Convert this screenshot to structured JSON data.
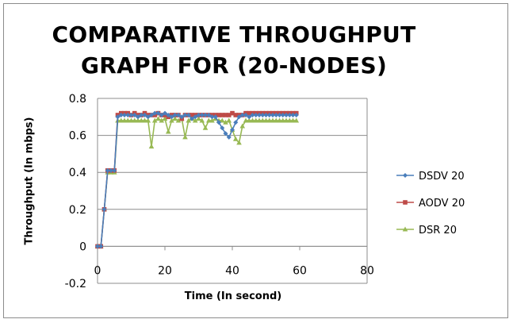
{
  "chart_data": {
    "type": "line",
    "title": "COMPARATIVE THROUGHPUT GRAPH FOR (20-NODES)",
    "title_lines": [
      "COMPARATIVE THROUGHPUT",
      "GRAPH FOR (20-NODES)"
    ],
    "xlabel": "Time (In second)",
    "ylabel": "Throughput (In mbps)",
    "xlim": [
      0,
      80
    ],
    "ylim": [
      -0.2,
      0.8
    ],
    "x_ticks": [
      0,
      20,
      40,
      60,
      80
    ],
    "y_ticks": [
      -0.2,
      0,
      0.2,
      0.4,
      0.6,
      0.8
    ],
    "x_tick_labels": [
      "0",
      "20",
      "40",
      "60",
      "80"
    ],
    "y_tick_labels": [
      "-0.2",
      "0",
      "0.2",
      "0.4",
      "0.6",
      "0.8"
    ],
    "grid": "horizontal",
    "legend_position": "right",
    "series": [
      {
        "name": "DSDV 20",
        "color": "#4a7ebb",
        "marker": "diamond",
        "x": [
          0,
          1,
          2,
          3,
          4,
          5,
          6,
          7,
          8,
          9,
          10,
          11,
          12,
          13,
          14,
          15,
          16,
          17,
          18,
          19,
          20,
          21,
          22,
          23,
          24,
          25,
          26,
          27,
          28,
          29,
          30,
          31,
          32,
          33,
          34,
          35,
          36,
          37,
          38,
          39,
          40,
          41,
          42,
          43,
          44,
          45,
          46,
          47,
          48,
          49,
          50,
          51,
          52,
          53,
          54,
          55,
          56,
          57,
          58,
          59
        ],
        "y": [
          0,
          0,
          0.2,
          0.41,
          0.41,
          0.41,
          0.7,
          0.71,
          0.71,
          0.71,
          0.71,
          0.71,
          0.7,
          0.71,
          0.71,
          0.7,
          0.71,
          0.72,
          0.72,
          0.71,
          0.72,
          0.71,
          0.7,
          0.71,
          0.71,
          0.7,
          0.71,
          0.71,
          0.69,
          0.7,
          0.71,
          0.71,
          0.71,
          0.71,
          0.7,
          0.7,
          0.67,
          0.64,
          0.61,
          0.59,
          0.63,
          0.67,
          0.7,
          0.71,
          0.71,
          0.7,
          0.71,
          0.71,
          0.71,
          0.71,
          0.71,
          0.71,
          0.71,
          0.71,
          0.71,
          0.71,
          0.71,
          0.71,
          0.71,
          0.71
        ]
      },
      {
        "name": "AODV 20",
        "color": "#be4b48",
        "marker": "square",
        "x": [
          0,
          1,
          2,
          3,
          4,
          5,
          6,
          7,
          8,
          9,
          10,
          11,
          12,
          13,
          14,
          15,
          16,
          17,
          18,
          19,
          20,
          21,
          22,
          23,
          24,
          25,
          26,
          27,
          28,
          29,
          30,
          31,
          32,
          33,
          34,
          35,
          36,
          37,
          38,
          39,
          40,
          41,
          42,
          43,
          44,
          45,
          46,
          47,
          48,
          49,
          50,
          51,
          52,
          53,
          54,
          55,
          56,
          57,
          58,
          59
        ],
        "y": [
          0,
          0,
          0.2,
          0.41,
          0.41,
          0.41,
          0.71,
          0.72,
          0.72,
          0.72,
          0.71,
          0.72,
          0.71,
          0.71,
          0.72,
          0.71,
          0.71,
          0.71,
          0.72,
          0.71,
          0.71,
          0.7,
          0.71,
          0.71,
          0.71,
          0.69,
          0.71,
          0.71,
          0.71,
          0.71,
          0.71,
          0.71,
          0.71,
          0.71,
          0.71,
          0.71,
          0.71,
          0.71,
          0.71,
          0.71,
          0.72,
          0.71,
          0.71,
          0.71,
          0.72,
          0.72,
          0.72,
          0.72,
          0.72,
          0.72,
          0.72,
          0.72,
          0.72,
          0.72,
          0.72,
          0.72,
          0.72,
          0.72,
          0.72,
          0.72
        ]
      },
      {
        "name": "DSR 20",
        "color": "#98b954",
        "marker": "triangle",
        "x": [
          0,
          1,
          2,
          3,
          4,
          5,
          6,
          7,
          8,
          9,
          10,
          11,
          12,
          13,
          14,
          15,
          16,
          17,
          18,
          19,
          20,
          21,
          22,
          23,
          24,
          25,
          26,
          27,
          28,
          29,
          30,
          31,
          32,
          33,
          34,
          35,
          36,
          37,
          38,
          39,
          40,
          41,
          42,
          43,
          44,
          45,
          46,
          47,
          48,
          49,
          50,
          51,
          52,
          53,
          54,
          55,
          56,
          57,
          58,
          59
        ],
        "y": [
          0,
          0,
          0.2,
          0.4,
          0.4,
          0.4,
          0.68,
          0.68,
          0.68,
          0.68,
          0.68,
          0.68,
          0.68,
          0.68,
          0.68,
          0.68,
          0.54,
          0.68,
          0.69,
          0.68,
          0.69,
          0.62,
          0.68,
          0.69,
          0.68,
          0.69,
          0.59,
          0.68,
          0.69,
          0.68,
          0.69,
          0.68,
          0.64,
          0.68,
          0.68,
          0.69,
          0.68,
          0.68,
          0.67,
          0.68,
          0.63,
          0.58,
          0.56,
          0.65,
          0.68,
          0.68,
          0.68,
          0.68,
          0.68,
          0.68,
          0.68,
          0.68,
          0.68,
          0.68,
          0.68,
          0.68,
          0.68,
          0.68,
          0.68,
          0.68
        ]
      }
    ]
  }
}
